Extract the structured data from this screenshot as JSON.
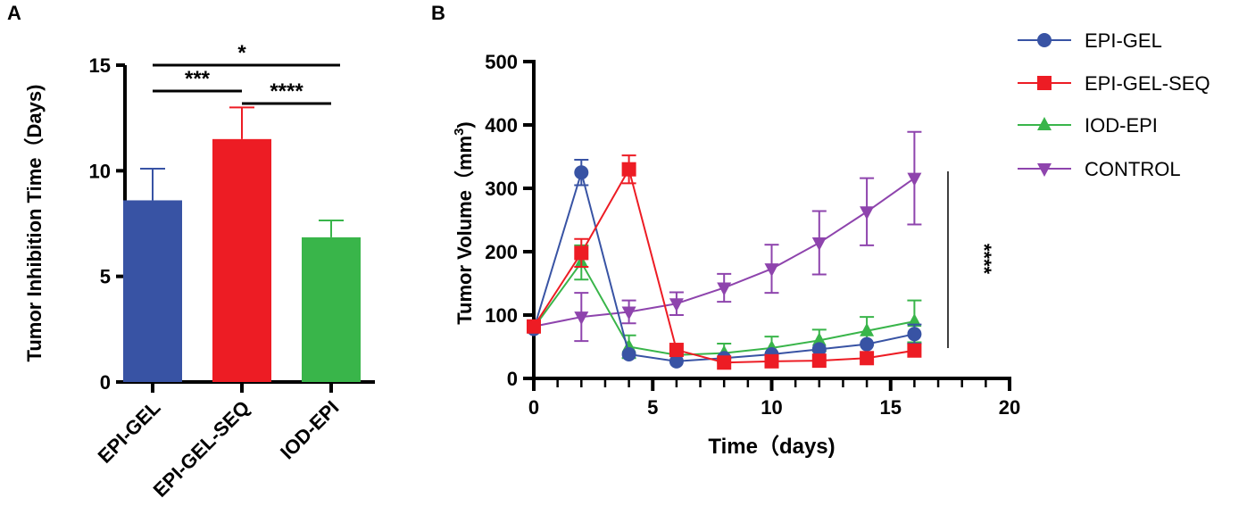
{
  "chart_data": [
    {
      "panel": "A",
      "type": "bar",
      "ylabel": "Tumor Inhibition Time（Days)",
      "ylim": [
        0,
        15
      ],
      "yticks": [
        0,
        5,
        10,
        15
      ],
      "categories": [
        "EPI-GEL",
        "EPI-GEL-SEQ",
        "IOD-EPI"
      ],
      "values": [
        8.6,
        11.5,
        6.85
      ],
      "errors": [
        1.5,
        1.5,
        0.8
      ],
      "colors": [
        "#3853a4",
        "#ed1c24",
        "#39b54a"
      ],
      "significance": [
        {
          "from": 0,
          "to": 2,
          "label": "*"
        },
        {
          "from": 0,
          "to": 1,
          "label": "***"
        },
        {
          "from": 1,
          "to": 2,
          "label": "****"
        }
      ]
    },
    {
      "panel": "B",
      "type": "line",
      "xlabel": "Time（days)",
      "ylabel": "Tumor Volume（mm",
      "ylabel_sup": "3",
      "ylabel_end": ")",
      "xlim": [
        0,
        20
      ],
      "ylim": [
        0,
        500
      ],
      "xticks": [
        0,
        5,
        10,
        15,
        20
      ],
      "yticks": [
        0,
        100,
        200,
        300,
        400,
        500
      ],
      "x": [
        0,
        2,
        4,
        6,
        8,
        10,
        12,
        14,
        16
      ],
      "legend": "right",
      "annotation": "****",
      "series": [
        {
          "name": "EPI-GEL",
          "color": "#3853a4",
          "marker": "circle",
          "values": [
            78,
            325,
            38,
            27,
            32,
            38,
            46,
            54,
            70
          ],
          "errors": [
            0,
            20,
            0,
            0,
            0,
            0,
            0,
            0,
            15
          ]
        },
        {
          "name": "EPI-GEL-SEQ",
          "color": "#ed1c24",
          "marker": "square",
          "values": [
            82,
            198,
            330,
            45,
            25,
            27,
            28,
            32,
            44
          ],
          "errors": [
            0,
            22,
            22,
            0,
            0,
            0,
            0,
            0,
            0
          ]
        },
        {
          "name": "IOD-EPI",
          "color": "#39b54a",
          "marker": "triangle",
          "values": [
            80,
            183,
            50,
            37,
            40,
            48,
            60,
            75,
            90
          ],
          "errors": [
            0,
            27,
            18,
            0,
            15,
            18,
            17,
            22,
            33
          ]
        },
        {
          "name": "CONTROL",
          "color": "#8e44ad",
          "marker": "triangle-down",
          "values": [
            82,
            97,
            105,
            118,
            143,
            173,
            214,
            263,
            316
          ],
          "errors": [
            0,
            38,
            18,
            18,
            22,
            38,
            50,
            53,
            73
          ]
        }
      ]
    }
  ],
  "panel_labels": [
    "A",
    "B"
  ]
}
